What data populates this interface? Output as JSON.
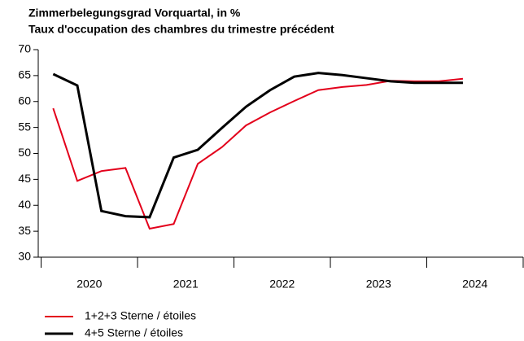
{
  "chart_data": {
    "type": "line",
    "title": "Zimmerbelegungsgrad Vorquartal, in %",
    "subtitle": "Taux d'occupation des chambres du trimestre précédent",
    "x": [
      2020.125,
      2020.375,
      2020.625,
      2020.875,
      2021.125,
      2021.375,
      2021.625,
      2021.875,
      2022.125,
      2022.375,
      2022.625,
      2022.875,
      2023.125,
      2023.375,
      2023.625,
      2023.875,
      2024.125,
      2024.375
    ],
    "series": [
      {
        "name": "1+2+3 Sterne / étoiles",
        "color": "#e3001b",
        "values": [
          58.7,
          44.7,
          46.6,
          47.2,
          35.5,
          36.4,
          48.0,
          51.2,
          55.4,
          57.9,
          60.1,
          62.2,
          62.8,
          63.2,
          64.0,
          63.9,
          63.9,
          64.4
        ]
      },
      {
        "name": "4+5 Sterne / étoiles",
        "color": "#000000",
        "values": [
          65.3,
          63.1,
          38.9,
          37.9,
          37.7,
          49.2,
          50.7,
          54.9,
          59.0,
          62.2,
          64.8,
          65.5,
          65.1,
          64.5,
          63.9,
          63.6,
          63.6,
          63.6
        ]
      }
    ],
    "xlim": [
      2019.97,
      2025
    ],
    "xticks": [
      {
        "value": 2020.5,
        "label": "2020"
      },
      {
        "value": 2021.5,
        "label": "2021"
      },
      {
        "value": 2022.5,
        "label": "2022"
      },
      {
        "value": 2023.5,
        "label": "2023"
      },
      {
        "value": 2024.5,
        "label": "2024"
      }
    ],
    "xminorticks": [
      2020,
      2021,
      2022,
      2023,
      2024,
      2025
    ],
    "ylim": [
      30,
      70
    ],
    "yticks": [
      30,
      35,
      40,
      45,
      50,
      55,
      60,
      65,
      70
    ]
  }
}
